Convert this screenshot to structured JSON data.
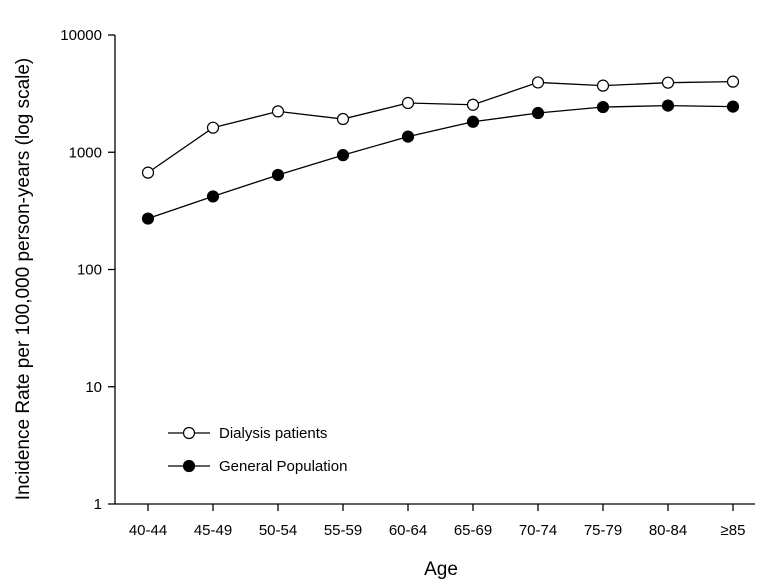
{
  "chart_data": {
    "type": "line",
    "title": "",
    "xlabel": "Age",
    "ylabel": "Incidence Rate per 100,000 person-years (log scale)",
    "yscale": "log",
    "ylim": [
      1,
      10000
    ],
    "yticks": [
      1,
      10,
      100,
      1000,
      10000
    ],
    "ytick_labels": [
      "1",
      "10",
      "100",
      "1000",
      "10000"
    ],
    "categories": [
      "40-44",
      "45-49",
      "50-54",
      "55-59",
      "60-64",
      "65-69",
      "70-74",
      "75-79",
      "80-84",
      "≥85"
    ],
    "grid": false,
    "legend_position": "bottom-left",
    "series": [
      {
        "name": "Dialysis patients",
        "marker": "open-circle",
        "color": "#000000",
        "values": [
          670,
          1620,
          2230,
          1920,
          2630,
          2540,
          3940,
          3700,
          3920,
          4000
        ]
      },
      {
        "name": "General Population",
        "marker": "filled-circle",
        "color": "#000000",
        "values": [
          272,
          420,
          640,
          945,
          1360,
          1820,
          2160,
          2430,
          2500,
          2450
        ]
      }
    ]
  }
}
